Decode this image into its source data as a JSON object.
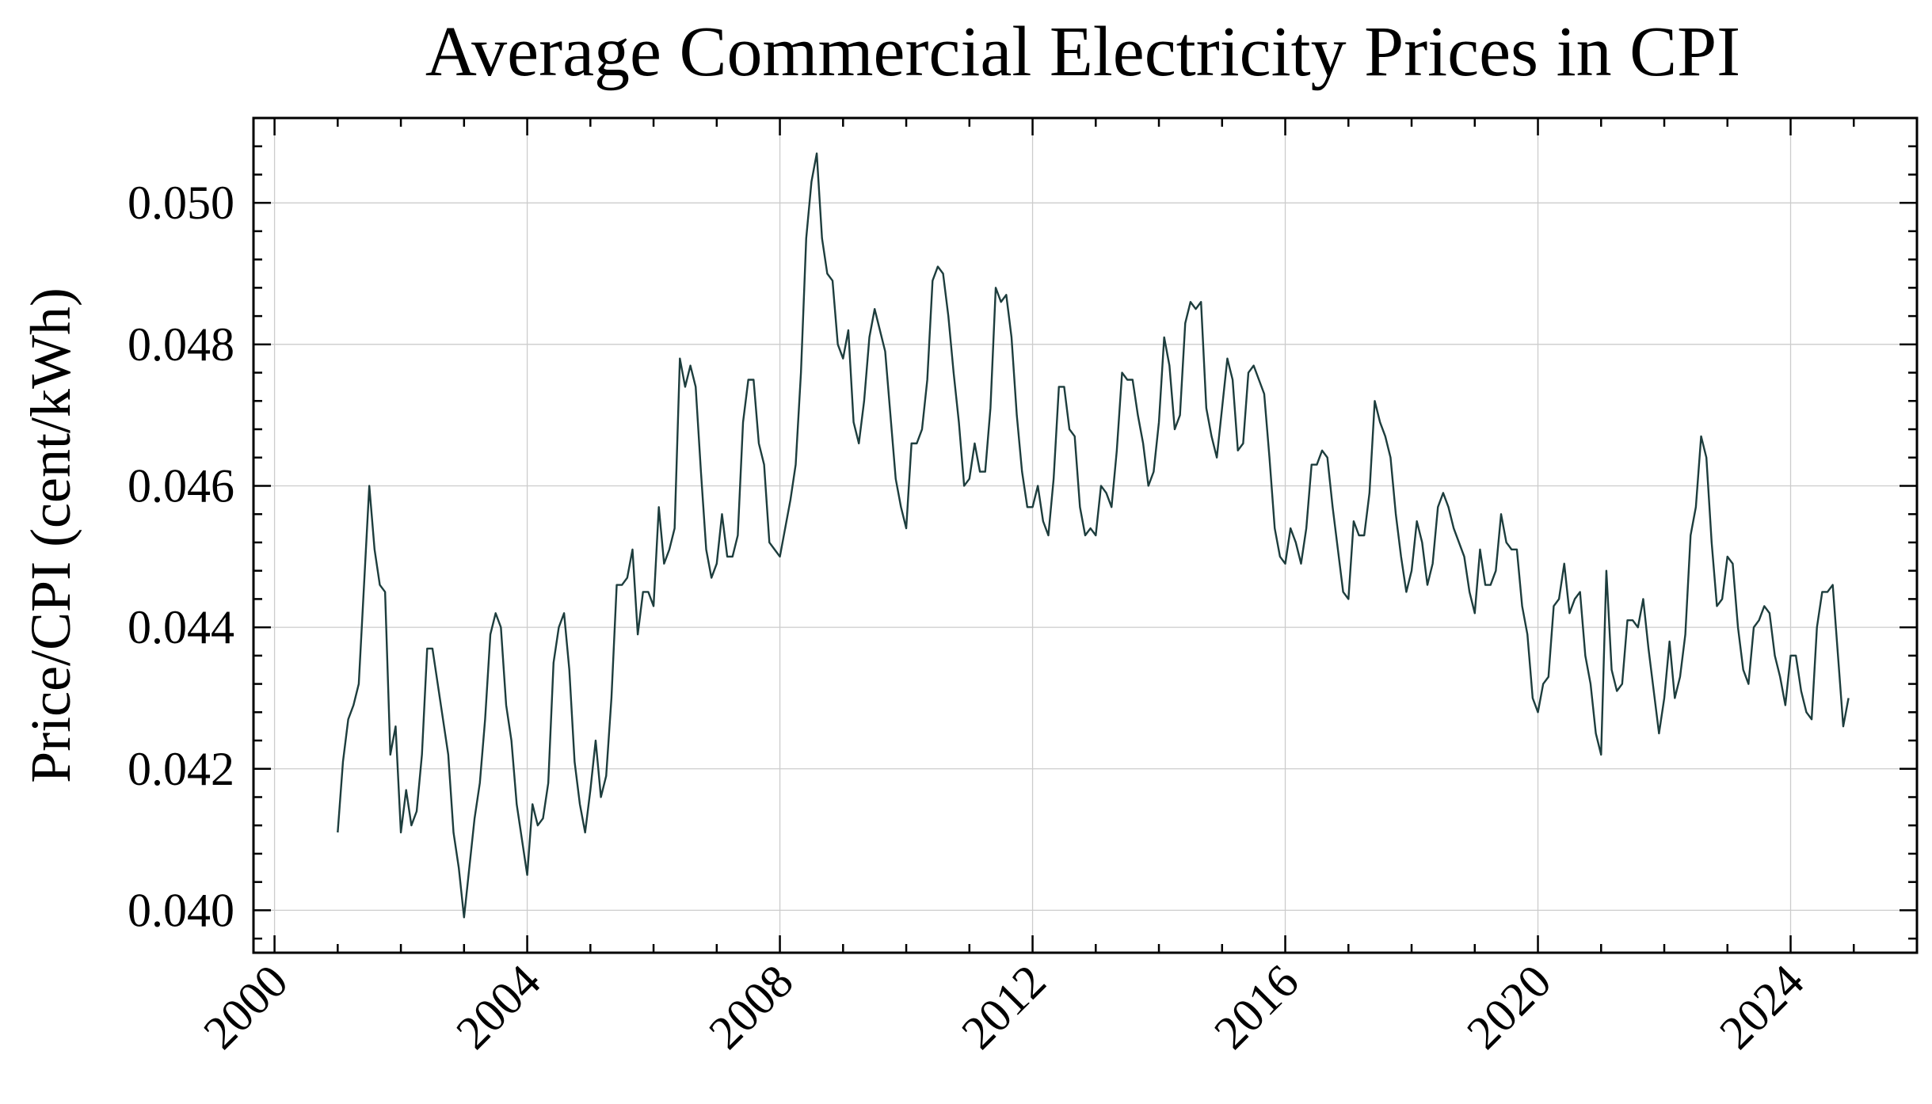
{
  "chart_data": {
    "type": "line",
    "title": "Average Commercial Electricity Prices in CPI",
    "xlabel": "",
    "ylabel": "Price/CPI (cent/kWh)",
    "x_tick_labels": [
      "2000",
      "2004",
      "2008",
      "2012",
      "2016",
      "2020",
      "2024"
    ],
    "y_tick_labels": [
      "0.040",
      "0.042",
      "0.044",
      "0.046",
      "0.048",
      "0.050"
    ],
    "xlim": [
      "1999-09",
      "2026-01"
    ],
    "ylim": [
      0.0394,
      0.0512
    ],
    "grid": true,
    "colors": {
      "line": "#1d3d3d",
      "grid": "#cccccc",
      "frame": "#000000"
    },
    "series": [
      {
        "x": [
          "2001-01",
          "2001-02",
          "2001-03",
          "2001-04",
          "2001-05",
          "2001-06",
          "2001-07",
          "2001-08",
          "2001-09",
          "2001-10",
          "2001-11",
          "2001-12",
          "2002-01",
          "2002-02",
          "2002-03",
          "2002-04",
          "2002-05",
          "2002-06",
          "2002-07",
          "2002-08",
          "2002-09",
          "2002-10",
          "2002-11",
          "2002-12",
          "2003-01",
          "2003-02",
          "2003-03",
          "2003-04",
          "2003-05",
          "2003-06",
          "2003-07",
          "2003-08",
          "2003-09",
          "2003-10",
          "2003-11",
          "2003-12",
          "2004-01",
          "2004-02",
          "2004-03",
          "2004-04",
          "2004-05",
          "2004-06",
          "2004-07",
          "2004-08",
          "2004-09",
          "2004-10",
          "2004-11",
          "2004-12",
          "2005-01",
          "2005-02",
          "2005-03",
          "2005-04",
          "2005-05",
          "2005-06",
          "2005-07",
          "2005-08",
          "2005-09",
          "2005-10",
          "2005-11",
          "2005-12",
          "2006-01",
          "2006-02",
          "2006-03",
          "2006-04",
          "2006-05",
          "2006-06",
          "2006-07",
          "2006-08",
          "2006-09",
          "2006-10",
          "2006-11",
          "2006-12",
          "2007-01",
          "2007-02",
          "2007-03",
          "2007-04",
          "2007-05",
          "2007-06",
          "2007-07",
          "2007-08",
          "2007-09",
          "2007-10",
          "2007-11",
          "2007-12",
          "2008-01",
          "2008-02",
          "2008-03",
          "2008-04",
          "2008-05",
          "2008-06",
          "2008-07",
          "2008-08",
          "2008-09",
          "2008-10",
          "2008-11",
          "2008-12",
          "2009-01",
          "2009-02",
          "2009-03",
          "2009-04",
          "2009-05",
          "2009-06",
          "2009-07",
          "2009-08",
          "2009-09",
          "2009-10",
          "2009-11",
          "2009-12",
          "2010-01",
          "2010-02",
          "2010-03",
          "2010-04",
          "2010-05",
          "2010-06",
          "2010-07",
          "2010-08",
          "2010-09",
          "2010-10",
          "2010-11",
          "2010-12",
          "2011-01",
          "2011-02",
          "2011-03",
          "2011-04",
          "2011-05",
          "2011-06",
          "2011-07",
          "2011-08",
          "2011-09",
          "2011-10",
          "2011-11",
          "2011-12",
          "2012-01",
          "2012-02",
          "2012-03",
          "2012-04",
          "2012-05",
          "2012-06",
          "2012-07",
          "2012-08",
          "2012-09",
          "2012-10",
          "2012-11",
          "2012-12",
          "2013-01",
          "2013-02",
          "2013-03",
          "2013-04",
          "2013-05",
          "2013-06",
          "2013-07",
          "2013-08",
          "2013-09",
          "2013-10",
          "2013-11",
          "2013-12",
          "2014-01",
          "2014-02",
          "2014-03",
          "2014-04",
          "2014-05",
          "2014-06",
          "2014-07",
          "2014-08",
          "2014-09",
          "2014-10",
          "2014-11",
          "2014-12",
          "2015-01",
          "2015-02",
          "2015-03",
          "2015-04",
          "2015-05",
          "2015-06",
          "2015-07",
          "2015-08",
          "2015-09",
          "2015-10",
          "2015-11",
          "2015-12",
          "2016-01",
          "2016-02",
          "2016-03",
          "2016-04",
          "2016-05",
          "2016-06",
          "2016-07",
          "2016-08",
          "2016-09",
          "2016-10",
          "2016-11",
          "2016-12",
          "2017-01",
          "2017-02",
          "2017-03",
          "2017-04",
          "2017-05",
          "2017-06",
          "2017-07",
          "2017-08",
          "2017-09",
          "2017-10",
          "2017-11",
          "2017-12",
          "2018-01",
          "2018-02",
          "2018-03",
          "2018-04",
          "2018-05",
          "2018-06",
          "2018-07",
          "2018-08",
          "2018-09",
          "2018-10",
          "2018-11",
          "2018-12",
          "2019-01",
          "2019-02",
          "2019-03",
          "2019-04",
          "2019-05",
          "2019-06",
          "2019-07",
          "2019-08",
          "2019-09",
          "2019-10",
          "2019-11",
          "2019-12",
          "2020-01",
          "2020-02",
          "2020-03",
          "2020-04",
          "2020-05",
          "2020-06",
          "2020-07",
          "2020-08",
          "2020-09",
          "2020-10",
          "2020-11",
          "2020-12",
          "2021-01",
          "2021-02",
          "2021-03",
          "2021-04",
          "2021-05",
          "2021-06",
          "2021-07",
          "2021-08",
          "2021-09",
          "2021-10",
          "2021-11",
          "2021-12",
          "2022-01",
          "2022-02",
          "2022-03",
          "2022-04",
          "2022-05",
          "2022-06",
          "2022-07",
          "2022-08",
          "2022-09",
          "2022-10",
          "2022-11",
          "2022-12",
          "2023-01",
          "2023-02",
          "2023-03",
          "2023-04",
          "2023-05",
          "2023-06",
          "2023-07",
          "2023-08",
          "2023-09",
          "2023-10",
          "2023-11",
          "2023-12",
          "2024-01",
          "2024-02",
          "2024-03",
          "2024-04",
          "2024-05",
          "2024-06",
          "2024-07",
          "2024-08",
          "2024-09",
          "2024-10",
          "2024-11",
          "2024-12"
        ],
        "y": [
          0.0411,
          0.0421,
          0.0427,
          0.0429,
          0.0432,
          0.0446,
          0.046,
          0.0451,
          0.0446,
          0.0445,
          0.0422,
          0.0426,
          0.0411,
          0.0417,
          0.0412,
          0.0414,
          0.0422,
          0.0437,
          0.0437,
          0.0432,
          0.0427,
          0.0422,
          0.0411,
          0.0406,
          0.0399,
          0.0406,
          0.0413,
          0.0418,
          0.0427,
          0.0439,
          0.0442,
          0.044,
          0.0429,
          0.0424,
          0.0415,
          0.041,
          0.0405,
          0.0415,
          0.0412,
          0.0413,
          0.0418,
          0.0435,
          0.044,
          0.0442,
          0.0434,
          0.0421,
          0.0415,
          0.0411,
          0.0417,
          0.0424,
          0.0416,
          0.0419,
          0.043,
          0.0446,
          0.0446,
          0.0447,
          0.0451,
          0.0439,
          0.0445,
          0.0445,
          0.0443,
          0.0457,
          0.0449,
          0.0451,
          0.0454,
          0.0478,
          0.0474,
          0.0477,
          0.0474,
          0.0462,
          0.0451,
          0.0447,
          0.0449,
          0.0456,
          0.045,
          0.045,
          0.0453,
          0.0469,
          0.0475,
          0.0475,
          0.0466,
          0.0463,
          0.0452,
          0.0451,
          0.045,
          0.0454,
          0.0458,
          0.0463,
          0.0476,
          0.0495,
          0.0503,
          0.0507,
          0.0495,
          0.049,
          0.0489,
          0.048,
          0.0478,
          0.0482,
          0.0469,
          0.0466,
          0.0472,
          0.0481,
          0.0485,
          0.0482,
          0.0479,
          0.047,
          0.0461,
          0.0457,
          0.0454,
          0.0466,
          0.0466,
          0.0468,
          0.0475,
          0.0489,
          0.0491,
          0.049,
          0.0484,
          0.0476,
          0.0469,
          0.046,
          0.0461,
          0.0466,
          0.0462,
          0.0462,
          0.0471,
          0.0488,
          0.0486,
          0.0487,
          0.0481,
          0.047,
          0.0462,
          0.0457,
          0.0457,
          0.046,
          0.0455,
          0.0453,
          0.0461,
          0.0474,
          0.0474,
          0.0468,
          0.0467,
          0.0457,
          0.0453,
          0.0454,
          0.0453,
          0.046,
          0.0459,
          0.0457,
          0.0465,
          0.0476,
          0.0475,
          0.0475,
          0.047,
          0.0466,
          0.046,
          0.0462,
          0.0469,
          0.0481,
          0.0477,
          0.0468,
          0.047,
          0.0483,
          0.0486,
          0.0485,
          0.0486,
          0.0471,
          0.0467,
          0.0464,
          0.0471,
          0.0478,
          0.0475,
          0.0465,
          0.0466,
          0.0476,
          0.0477,
          0.0475,
          0.0473,
          0.0464,
          0.0454,
          0.045,
          0.0449,
          0.0454,
          0.0452,
          0.0449,
          0.0454,
          0.0463,
          0.0463,
          0.0465,
          0.0464,
          0.0457,
          0.0451,
          0.0445,
          0.0444,
          0.0455,
          0.0453,
          0.0453,
          0.0459,
          0.0472,
          0.0469,
          0.0467,
          0.0464,
          0.0456,
          0.045,
          0.0445,
          0.0448,
          0.0455,
          0.0452,
          0.0446,
          0.0449,
          0.0457,
          0.0459,
          0.0457,
          0.0454,
          0.0452,
          0.045,
          0.0445,
          0.0442,
          0.0451,
          0.0446,
          0.0446,
          0.0448,
          0.0456,
          0.0452,
          0.0451,
          0.0451,
          0.0443,
          0.0439,
          0.043,
          0.0428,
          0.0432,
          0.0433,
          0.0443,
          0.0444,
          0.0449,
          0.0442,
          0.0444,
          0.0445,
          0.0436,
          0.0432,
          0.0425,
          0.0422,
          0.0448,
          0.0434,
          0.0431,
          0.0432,
          0.0441,
          0.0441,
          0.044,
          0.0444,
          0.0437,
          0.0431,
          0.0425,
          0.043,
          0.0438,
          0.043,
          0.0433,
          0.0439,
          0.0453,
          0.0457,
          0.0467,
          0.0464,
          0.0452,
          0.0443,
          0.0444,
          0.045,
          0.0449,
          0.044,
          0.0434,
          0.0432,
          0.044,
          0.0441,
          0.0443,
          0.0442,
          0.0436,
          0.0433,
          0.0429,
          0.0436,
          0.0436,
          0.0431,
          0.0428,
          0.0427,
          0.044,
          0.0445,
          0.0445,
          0.0446,
          0.0436,
          0.0426,
          0.043
        ]
      }
    ]
  }
}
